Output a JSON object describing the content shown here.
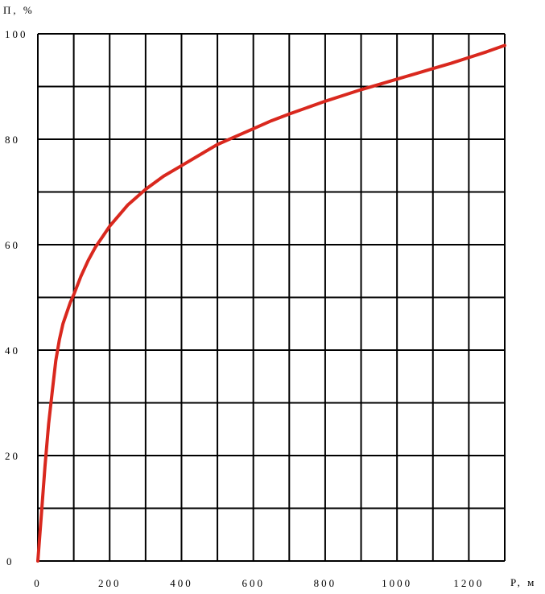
{
  "chart_data": {
    "type": "line",
    "title": "",
    "xlabel": "Р, м",
    "ylabel": "П, %",
    "xlim": [
      0,
      1300
    ],
    "ylim": [
      0,
      100
    ],
    "x_ticks": [
      0,
      200,
      400,
      600,
      800,
      1000,
      1200
    ],
    "y_ticks": [
      0,
      20,
      40,
      60,
      80,
      100
    ],
    "grid": true,
    "legend": "none",
    "series": [
      {
        "color": "#d9281e",
        "x": [
          0,
          10,
          20,
          30,
          40,
          50,
          60,
          70,
          80,
          90,
          100,
          120,
          140,
          160,
          180,
          200,
          250,
          300,
          350,
          400,
          450,
          500,
          550,
          600,
          650,
          700,
          750,
          800,
          850,
          900,
          950,
          1000,
          1050,
          1100,
          1150,
          1200,
          1250,
          1300
        ],
        "y": [
          0,
          9,
          18,
          26,
          32,
          38,
          42,
          45,
          47,
          49,
          50.5,
          54,
          57,
          59.5,
          61.5,
          63.5,
          67.5,
          70.5,
          73,
          75,
          77,
          79,
          80.5,
          82,
          83.5,
          84.8,
          86,
          87.2,
          88.3,
          89.4,
          90.4,
          91.4,
          92.4,
          93.4,
          94.4,
          95.5,
          96.6,
          97.8
        ]
      }
    ]
  }
}
